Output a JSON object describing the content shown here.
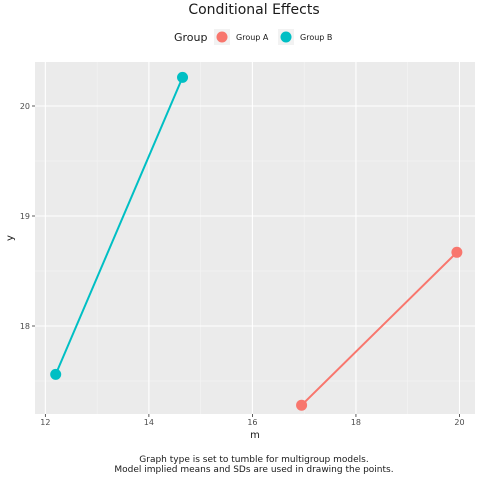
{
  "chart_data": {
    "type": "line",
    "title": "Conditional Effects",
    "xlabel": "m",
    "ylabel": "y",
    "xlim": [
      11.8,
      20.3
    ],
    "ylim": [
      17.2,
      20.4
    ],
    "x_ticks": [
      12,
      14,
      16,
      18,
      20
    ],
    "y_ticks": [
      18,
      19,
      20
    ],
    "grid": true,
    "legend": {
      "title": "Group",
      "position": "top"
    },
    "series": [
      {
        "name": "Group A",
        "color": "#F8766D",
        "points": [
          {
            "x": 16.95,
            "y": 17.28
          },
          {
            "x": 19.95,
            "y": 18.67
          }
        ]
      },
      {
        "name": "Group B",
        "color": "#00BFC4",
        "points": [
          {
            "x": 12.2,
            "y": 17.56
          },
          {
            "x": 14.65,
            "y": 20.26
          }
        ]
      }
    ],
    "caption_lines": [
      "Graph type is set to tumble for multigroup models.",
      "Model implied means and SDs are used in drawing the points."
    ]
  }
}
